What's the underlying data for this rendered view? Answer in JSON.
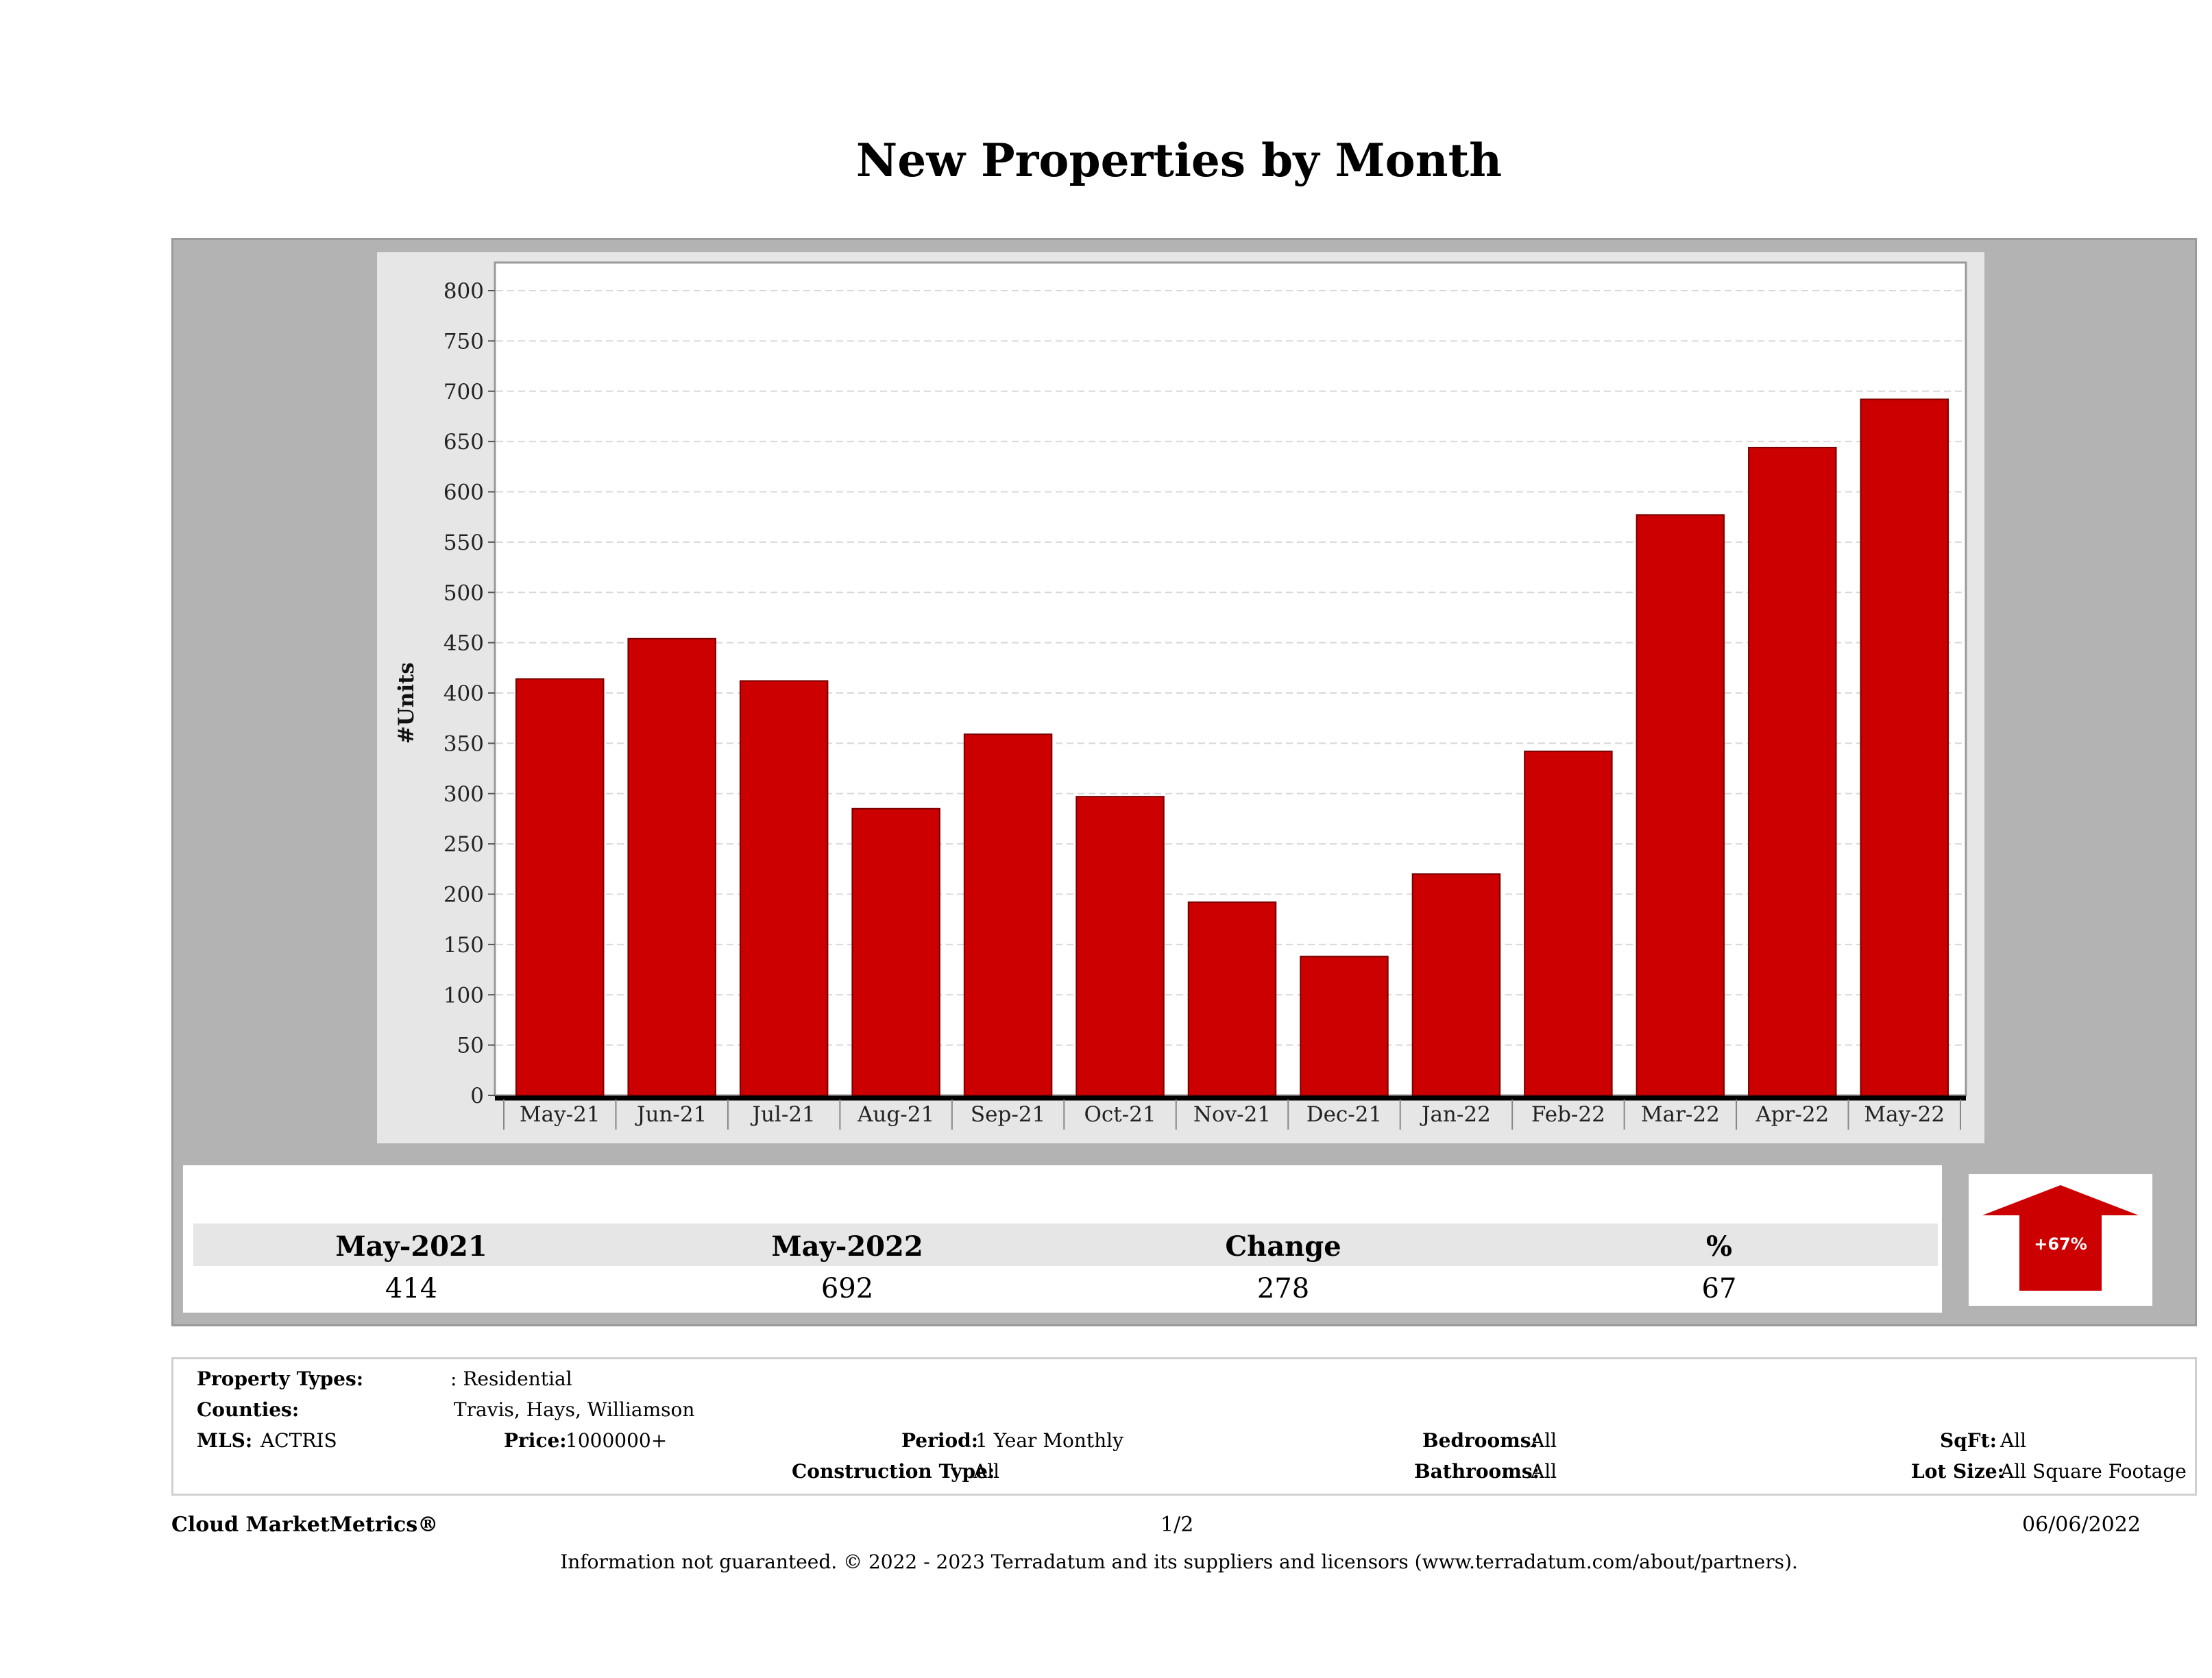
{
  "title": "New Properties by Month",
  "chart_data": {
    "type": "bar",
    "title": "",
    "ylabel": "#Units",
    "xlabel": "",
    "categories": [
      "May-21",
      "Jun-21",
      "Jul-21",
      "Aug-21",
      "Sep-21",
      "Oct-21",
      "Nov-21",
      "Dec-21",
      "Jan-22",
      "Feb-22",
      "Mar-22",
      "Apr-22",
      "May-22"
    ],
    "values": [
      414,
      454,
      412,
      285,
      359,
      297,
      192,
      138,
      220,
      342,
      577,
      644,
      692
    ],
    "ylim": [
      0,
      800
    ],
    "yticks": [
      0,
      50,
      100,
      150,
      200,
      250,
      300,
      350,
      400,
      450,
      500,
      550,
      600,
      650,
      700,
      750,
      800
    ],
    "grid": true,
    "bar_color": "#cc0000"
  },
  "stats": {
    "headers": [
      "May-2021",
      "May-2022",
      "Change",
      "%"
    ],
    "values": [
      "414",
      "692",
      "278",
      "67"
    ],
    "arrow_label": "+67%",
    "arrow_color": "#cc0000"
  },
  "info": {
    "property_types_label": "Property Types:",
    "property_types_value": ": Residential",
    "counties_label": "Counties:",
    "counties_value": "Travis, Hays, Williamson",
    "mls_label": "MLS:",
    "mls_value": "ACTRIS",
    "price_label": "Price:",
    "price_value": "1000000+",
    "period_label": "Period:",
    "period_value": "1 Year Monthly",
    "construction_label": "Construction Type:",
    "construction_value": "All",
    "bedrooms_label": "Bedrooms:",
    "bedrooms_value": "All",
    "bathrooms_label": "Bathrooms:",
    "bathrooms_value": "All",
    "sqft_label": "SqFt:",
    "sqft_value": "All",
    "lotsize_label": "Lot Size:",
    "lotsize_value": "All Square Footage"
  },
  "footer": {
    "brand": "Cloud MarketMetrics®",
    "page": "1/2",
    "date": "06/06/2022",
    "disclaimer": "Information not guaranteed. © 2022 - 2023 Terradatum and its suppliers and licensors (www.terradatum.com/about/partners)."
  }
}
